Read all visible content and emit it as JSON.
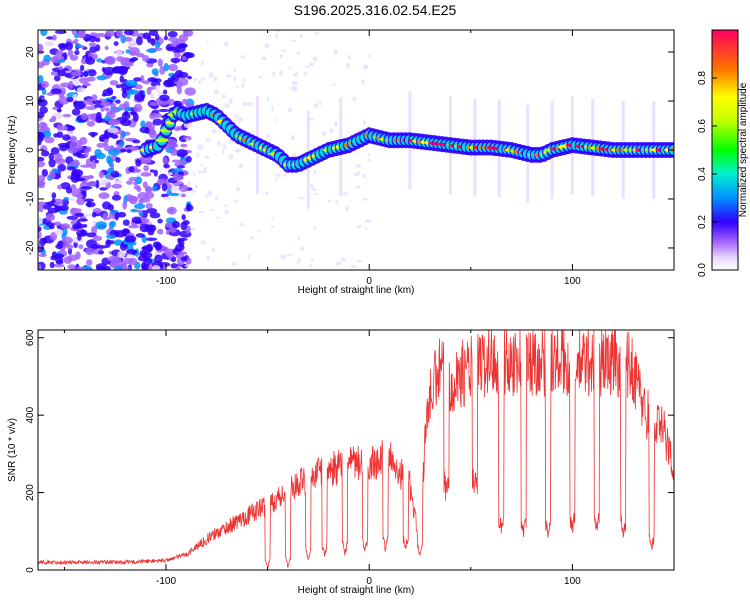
{
  "title": "S196.2025.316.02.54.E25",
  "chart_data": [
    {
      "type": "heatmap",
      "xlabel": "Height of straight line (km)",
      "ylabel": "Frequency (Hz)",
      "xlim": [
        -163,
        150
      ],
      "ylim": [
        -24.5,
        24.5
      ],
      "xticks": [
        -100,
        0,
        100
      ],
      "xtick_labels": [
        "-100",
        "0",
        "100"
      ],
      "yticks": [
        20,
        10,
        0,
        -10,
        -20
      ],
      "ytick_labels": [
        "20",
        "10",
        "0",
        "-10",
        "-20"
      ],
      "ridge": {
        "x": [
          -110,
          -103,
          -100,
          -95,
          -90,
          -85,
          -80,
          -75,
          -70,
          -65,
          -60,
          -55,
          -50,
          -45,
          -40,
          -35,
          -30,
          -25,
          -20,
          -15,
          -10,
          -5,
          0,
          5,
          10,
          20,
          30,
          40,
          50,
          60,
          70,
          80,
          85,
          90,
          95,
          100,
          110,
          120,
          130,
          140,
          150
        ],
        "y": [
          0,
          1,
          4,
          8,
          7,
          7.5,
          8,
          7,
          5,
          3,
          2,
          1,
          0,
          -1,
          -3,
          -3,
          -2,
          -1,
          0,
          0.5,
          1,
          2,
          3,
          2.5,
          2,
          2,
          1.5,
          1,
          0.5,
          0.5,
          0,
          -1,
          -1,
          0,
          0.5,
          1,
          0.5,
          0,
          0,
          0,
          0
        ]
      },
      "colorbar": {
        "label": "Normalized spectral amplitude",
        "range": [
          0,
          1
        ],
        "ticks": [
          0.0,
          0.2,
          0.4,
          0.6,
          0.8
        ],
        "tick_labels": [
          "0.0",
          "0.2",
          "0.4",
          "0.6",
          "0.8"
        ]
      }
    },
    {
      "type": "line",
      "xlabel": "Height of straight line (km)",
      "ylabel": "SNR (10 * v/v)",
      "xlim": [
        -163,
        150
      ],
      "ylim": [
        0,
        620
      ],
      "xticks": [
        -100,
        0,
        100
      ],
      "xtick_labels": [
        "-100",
        "0",
        "100"
      ],
      "yticks": [
        0,
        200,
        400,
        600
      ],
      "ytick_labels": [
        "0",
        "200",
        "400",
        "600"
      ],
      "color": "#ee3333",
      "envelope_x": [
        -163,
        -120,
        -100,
        -90,
        -80,
        -70,
        -60,
        -50,
        -40,
        -30,
        -20,
        -10,
        0,
        10,
        20,
        25,
        28,
        32,
        35,
        40,
        50,
        60,
        70,
        80,
        90,
        100,
        110,
        120,
        130,
        135,
        140,
        145,
        150
      ],
      "envelope_y": [
        20,
        20,
        25,
        40,
        80,
        110,
        140,
        170,
        200,
        240,
        260,
        270,
        280,
        290,
        220,
        60,
        400,
        480,
        520,
        490,
        520,
        540,
        540,
        540,
        540,
        530,
        540,
        540,
        520,
        420,
        380,
        360,
        260
      ],
      "dips_x": [
        -50,
        -40,
        -30,
        -22,
        -12,
        -2,
        8,
        18,
        25,
        38,
        52,
        65,
        76,
        88,
        100,
        112,
        125,
        139
      ],
      "dips_y": [
        5,
        10,
        30,
        40,
        45,
        50,
        55,
        60,
        40,
        200,
        210,
        110,
        100,
        100,
        110,
        110,
        100,
        60
      ]
    }
  ]
}
